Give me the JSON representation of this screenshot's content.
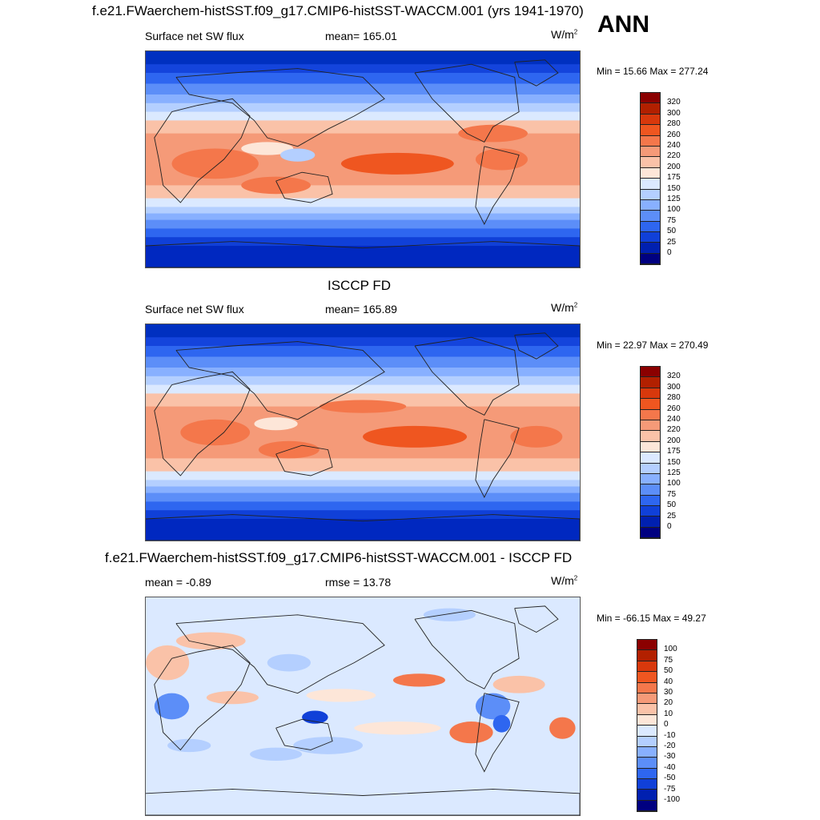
{
  "header": {
    "title": "f.e21.FWaerchem-histSST.f09_g17.CMIP6-histSST-WACCM.001 (yrs 1941-1970)",
    "season": "ANN"
  },
  "panels": [
    {
      "id": "model",
      "subtitle": "",
      "left_label": "Surface net SW flux",
      "center_label": "mean= 165.01",
      "units": "W/m",
      "units_exp": "2",
      "minmax": "Min =  15.66 Max = 277.24",
      "levels": [
        "320",
        "300",
        "280",
        "260",
        "240",
        "220",
        "200",
        "175",
        "150",
        "125",
        "100",
        "75",
        "50",
        "25",
        "0"
      ]
    },
    {
      "id": "obs",
      "subtitle": "ISCCP FD",
      "left_label": "Surface net SW flux",
      "center_label": "mean= 165.89",
      "units": "W/m",
      "units_exp": "2",
      "minmax": "Min =  22.97 Max = 270.49",
      "levels": [
        "320",
        "300",
        "280",
        "260",
        "240",
        "220",
        "200",
        "175",
        "150",
        "125",
        "100",
        "75",
        "50",
        "25",
        "0"
      ]
    },
    {
      "id": "diff",
      "subtitle": "f.e21.FWaerchem-histSST.f09_g17.CMIP6-histSST-WACCM.001 - ISCCP FD",
      "left_label": "mean =  -0.89",
      "center_label": "rmse =  13.78",
      "units": "W/m",
      "units_exp": "2",
      "minmax": "Min = -66.15 Max =  49.27",
      "levels": [
        "100",
        "75",
        "50",
        "40",
        "30",
        "20",
        "10",
        "0",
        "-10",
        "-20",
        "-30",
        "-40",
        "-50",
        "-75",
        "-100"
      ]
    }
  ],
  "colors": {
    "abs_scale": [
      "#8b0000",
      "#b22000",
      "#d8380c",
      "#ef5620",
      "#f4774b",
      "#f59a78",
      "#fac2a8",
      "#fde6d8",
      "#dbe9ff",
      "#b4cfff",
      "#88b0ff",
      "#5c8ef8",
      "#2e66f0",
      "#1040d8",
      "#0020b0",
      "#000080"
    ],
    "diff_scale": [
      "#8b0000",
      "#b22000",
      "#d8380c",
      "#ef5620",
      "#f4774b",
      "#f59a78",
      "#fac2a8",
      "#fde6d8",
      "#dbe9ff",
      "#b4cfff",
      "#88b0ff",
      "#5c8ef8",
      "#2e66f0",
      "#1040d8",
      "#0020b0",
      "#000080"
    ]
  }
}
